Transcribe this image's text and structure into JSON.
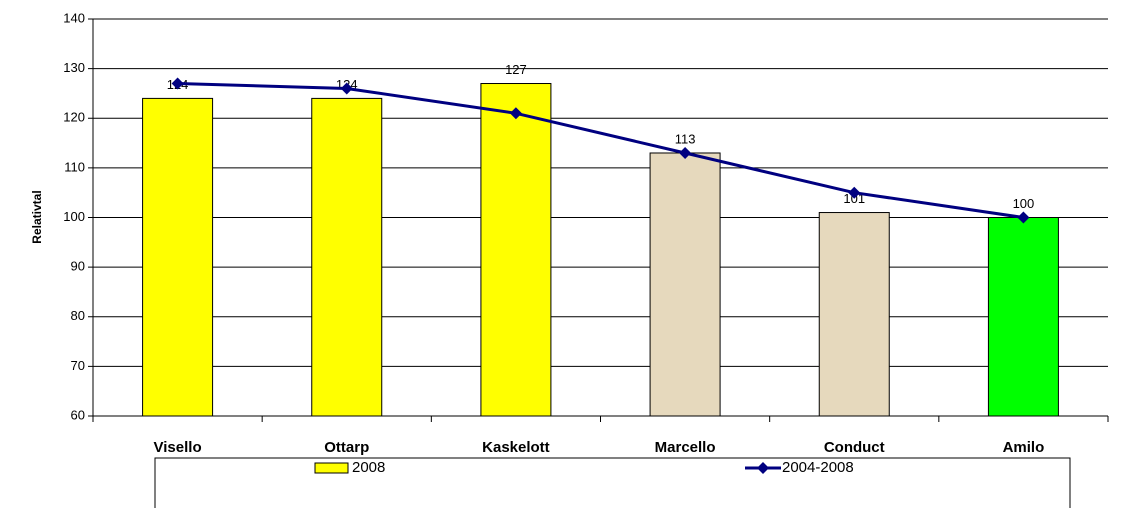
{
  "chart_data": {
    "type": "bar",
    "y_label": "Relativtal",
    "categories": [
      "Visello",
      "Ottarp",
      "Kaskelott",
      "Marcello",
      "Conduct",
      "Amilo"
    ],
    "series": [
      {
        "name": "2008",
        "type": "bar",
        "color": "#ffff00",
        "colors": [
          "#ffff00",
          "#ffff00",
          "#ffff00",
          "#e6d9bd",
          "#e6d9bd",
          "#00ff00"
        ],
        "values": [
          124,
          124,
          127,
          113,
          101,
          100
        ],
        "value_labels": [
          "124",
          "124",
          "127",
          "113",
          "101",
          "100"
        ]
      },
      {
        "name": "2004-2008",
        "type": "line",
        "color": "#000080",
        "values": [
          127,
          126,
          121,
          113,
          105,
          100
        ]
      }
    ],
    "ylim": [
      60,
      140
    ],
    "yticks": [
      60,
      70,
      80,
      90,
      100,
      110,
      120,
      130,
      140
    ],
    "grid": true,
    "legend": "bottom"
  }
}
